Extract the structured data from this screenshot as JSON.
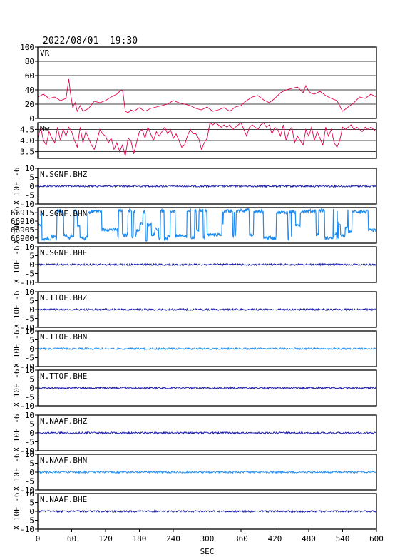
{
  "header": {
    "datetime": "2022/08/01  19:30"
  },
  "chart_data": {
    "type": "line",
    "xlabel": "SEC",
    "xlim": [
      0,
      600
    ],
    "xticks": [
      0,
      60,
      120,
      180,
      240,
      300,
      360,
      420,
      480,
      540,
      600
    ],
    "panels": [
      {
        "name": "VR",
        "label": "VR",
        "color": "#e0004f",
        "ylim": [
          0,
          100
        ],
        "yticks": [
          "0",
          "20",
          "40",
          "60",
          "80",
          "100"
        ],
        "ytick_values": [
          0,
          20,
          40,
          60,
          80,
          100
        ],
        "grid": true,
        "x": [
          0,
          10,
          20,
          30,
          40,
          50,
          55,
          58,
          62,
          66,
          70,
          75,
          80,
          90,
          100,
          110,
          120,
          130,
          140,
          145,
          150,
          152,
          155,
          160,
          165,
          170,
          180,
          190,
          200,
          210,
          220,
          230,
          240,
          250,
          260,
          270,
          280,
          290,
          300,
          310,
          320,
          330,
          340,
          350,
          360,
          370,
          380,
          390,
          400,
          410,
          420,
          430,
          440,
          450,
          460,
          470,
          475,
          480,
          485,
          490,
          500,
          510,
          520,
          530,
          540,
          550,
          560,
          570,
          580,
          590,
          600
        ],
        "y": [
          30,
          34,
          28,
          30,
          25,
          28,
          55,
          35,
          15,
          22,
          10,
          18,
          10,
          14,
          24,
          22,
          25,
          30,
          34,
          38,
          40,
          30,
          10,
          8,
          12,
          10,
          15,
          10,
          14,
          16,
          18,
          20,
          25,
          22,
          20,
          18,
          14,
          12,
          16,
          10,
          12,
          15,
          10,
          16,
          18,
          25,
          30,
          32,
          26,
          22,
          28,
          36,
          40,
          42,
          44,
          36,
          46,
          38,
          35,
          34,
          38,
          32,
          28,
          25,
          10,
          16,
          22,
          30,
          28,
          34,
          30
        ]
      },
      {
        "name": "Mw",
        "label": "Mw",
        "color": "#e0004f",
        "ylim": [
          3.2,
          4.8
        ],
        "yticks": [
          "3.5",
          "4.0",
          "4.5"
        ],
        "ytick_values": [
          3.5,
          4.0,
          4.5
        ],
        "grid": true,
        "x": [
          0,
          5,
          10,
          15,
          20,
          25,
          30,
          35,
          40,
          45,
          50,
          55,
          60,
          65,
          70,
          75,
          80,
          85,
          90,
          95,
          100,
          105,
          110,
          115,
          120,
          125,
          130,
          135,
          140,
          145,
          150,
          155,
          160,
          165,
          170,
          175,
          180,
          185,
          190,
          195,
          200,
          205,
          210,
          215,
          220,
          225,
          230,
          235,
          240,
          245,
          250,
          255,
          260,
          265,
          270,
          275,
          280,
          285,
          290,
          295,
          300,
          305,
          310,
          315,
          320,
          325,
          330,
          335,
          340,
          345,
          350,
          355,
          360,
          365,
          370,
          375,
          380,
          385,
          390,
          395,
          400,
          405,
          410,
          415,
          420,
          425,
          430,
          435,
          440,
          445,
          450,
          455,
          460,
          465,
          470,
          475,
          480,
          485,
          490,
          495,
          500,
          505,
          510,
          515,
          520,
          525,
          530,
          535,
          540,
          545,
          550,
          555,
          560,
          565,
          570,
          575,
          580,
          585,
          590,
          595,
          600
        ],
        "y": [
          4.1,
          4.6,
          4.0,
          3.8,
          4.4,
          4.1,
          3.9,
          4.6,
          4.0,
          4.5,
          4.2,
          4.6,
          4.4,
          4.0,
          3.7,
          4.6,
          3.9,
          4.4,
          4.1,
          3.8,
          3.6,
          4.0,
          4.5,
          4.3,
          4.2,
          3.9,
          4.1,
          3.6,
          3.9,
          3.5,
          3.8,
          3.3,
          4.1,
          4.0,
          3.4,
          3.9,
          4.4,
          4.5,
          4.1,
          4.6,
          4.3,
          4.0,
          4.4,
          4.2,
          4.4,
          4.6,
          4.3,
          4.5,
          4.1,
          4.3,
          4.0,
          3.7,
          3.8,
          4.2,
          4.5,
          4.3,
          4.3,
          4.1,
          3.6,
          3.9,
          4.1,
          4.8,
          4.7,
          4.8,
          4.7,
          4.6,
          4.7,
          4.6,
          4.7,
          4.5,
          4.6,
          4.7,
          4.8,
          4.5,
          4.2,
          4.6,
          4.7,
          4.6,
          4.5,
          4.7,
          4.8,
          4.6,
          4.7,
          4.3,
          4.6,
          4.5,
          4.2,
          4.7,
          4.0,
          4.4,
          4.6,
          3.9,
          4.2,
          4.0,
          3.8,
          4.5,
          4.2,
          4.6,
          4.0,
          4.4,
          4.1,
          3.8,
          4.6,
          4.2,
          4.5,
          3.9,
          3.7,
          4.0,
          4.6,
          4.5,
          4.6,
          4.7,
          4.5,
          4.6,
          4.5,
          4.4,
          4.6,
          4.5,
          4.6,
          4.5,
          4.4
        ]
      },
      {
        "name": "N.SGNF.BHZ",
        "label": "N.SGNF.BHZ",
        "color": "#1a1aa8",
        "ylim": [
          -10,
          10
        ],
        "yticks": [
          "-10",
          "-5",
          "0",
          "5",
          "10"
        ],
        "ytick_values": [
          -10,
          -5,
          0,
          5,
          10
        ],
        "kind": "noise",
        "amp": 0.5,
        "ylabel": "X 10E -6"
      },
      {
        "name": "N.SGNF.BHN",
        "label": "N.SGNF.BHN",
        "color": "#1e8cf0",
        "ylim": [
          66897,
          66918
        ],
        "yticks": [
          "66900",
          "66905",
          "66910",
          "66915"
        ],
        "ytick_values": [
          66900,
          66905,
          66910,
          66915
        ],
        "kind": "blocky",
        "ylabel": "X 10E -6"
      },
      {
        "name": "N.SGNF.BHE",
        "label": "N.SGNF.BHE",
        "color": "#1a1aa8",
        "ylim": [
          -10,
          10
        ],
        "yticks": [
          "-10",
          "-5",
          "0",
          "5",
          "10"
        ],
        "ytick_values": [
          -10,
          -5,
          0,
          5,
          10
        ],
        "kind": "noise",
        "amp": 0.5,
        "ylabel": "X 10E -6"
      },
      {
        "name": "N.TTOF.BHZ",
        "label": "N.TTOF.BHZ",
        "color": "#1a1aa8",
        "ylim": [
          -10,
          10
        ],
        "yticks": [
          "-10",
          "-5",
          "0",
          "5",
          "10"
        ],
        "ytick_values": [
          -10,
          -5,
          0,
          5,
          10
        ],
        "kind": "noise",
        "amp": 0.5,
        "ylabel": "X 10E -6"
      },
      {
        "name": "N.TTOF.BHN",
        "label": "N.TTOF.BHN",
        "color": "#1e8cf0",
        "ylim": [
          -10,
          10
        ],
        "yticks": [
          "-10",
          "-5",
          "0",
          "5",
          "10"
        ],
        "ytick_values": [
          -10,
          -5,
          0,
          5,
          10
        ],
        "kind": "noise",
        "amp": 0.5,
        "ylabel": "X 10E -6"
      },
      {
        "name": "N.TTOF.BHE",
        "label": "N.TTOF.BHE",
        "color": "#1a1aa8",
        "ylim": [
          -10,
          10
        ],
        "yticks": [
          "-10",
          "-5",
          "0",
          "5",
          "10"
        ],
        "ytick_values": [
          -10,
          -5,
          0,
          5,
          10
        ],
        "kind": "noise",
        "amp": 0.5,
        "ylabel": "X 10E -6"
      },
      {
        "name": "N.NAAF.BHZ",
        "label": "N.NAAF.BHZ",
        "color": "#1a1aa8",
        "ylim": [
          -10,
          10
        ],
        "yticks": [
          "-10",
          "-5",
          "0",
          "5",
          "10"
        ],
        "ytick_values": [
          -10,
          -5,
          0,
          5,
          10
        ],
        "kind": "noise",
        "amp": 0.5,
        "ylabel": "X 10E -6"
      },
      {
        "name": "N.NAAF.BHN",
        "label": "N.NAAF.BHN",
        "color": "#1e8cf0",
        "ylim": [
          -10,
          10
        ],
        "yticks": [
          "-10",
          "-5",
          "0",
          "5",
          "10"
        ],
        "ytick_values": [
          -10,
          -5,
          0,
          5,
          10
        ],
        "kind": "noise",
        "amp": 0.5,
        "ylabel": "X 10E -6"
      },
      {
        "name": "N.NAAF.BHE",
        "label": "N.NAAF.BHE",
        "color": "#1a1aa8",
        "ylim": [
          -10,
          10
        ],
        "yticks": [
          "-10",
          "-5",
          "0",
          "5",
          "10"
        ],
        "ytick_values": [
          -10,
          -5,
          0,
          5,
          10
        ],
        "kind": "noise",
        "amp": 0.5,
        "ylabel": "X 10E -6"
      }
    ]
  }
}
